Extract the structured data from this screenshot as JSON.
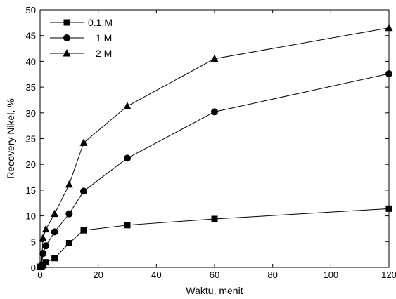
{
  "chart_data": {
    "type": "line",
    "xlabel": "Waktu, menit",
    "ylabel": "Recovery Nikel, %",
    "xlim": [
      0,
      120
    ],
    "ylim": [
      0,
      50
    ],
    "xticks": [
      0,
      20,
      40,
      60,
      80,
      100,
      120
    ],
    "yticks": [
      0,
      5,
      10,
      15,
      20,
      25,
      30,
      35,
      40,
      45,
      50
    ],
    "grid": false,
    "legend_position": "top-left",
    "series": [
      {
        "name": "0.1 M",
        "marker": "square",
        "x": [
          0,
          0.5,
          1,
          2,
          5,
          10,
          15,
          30,
          60,
          120
        ],
        "y": [
          0.1,
          0.2,
          0.4,
          1.0,
          1.8,
          4.7,
          7.2,
          8.2,
          9.4,
          11.4
        ]
      },
      {
        "name": "1 M",
        "marker": "circle",
        "x": [
          0,
          0.5,
          1,
          2,
          5,
          10,
          15,
          30,
          60,
          120
        ],
        "y": [
          0.1,
          0.5,
          2.7,
          4.2,
          6.9,
          10.4,
          14.8,
          21.2,
          30.2,
          37.6
        ]
      },
      {
        "name": "2 M",
        "marker": "triangle",
        "x": [
          0,
          0.5,
          1,
          2,
          5,
          10,
          15,
          30,
          60,
          120
        ],
        "y": [
          0.2,
          0.5,
          5.7,
          7.4,
          10.4,
          16.1,
          24.2,
          31.3,
          40.5,
          46.5
        ]
      }
    ]
  }
}
